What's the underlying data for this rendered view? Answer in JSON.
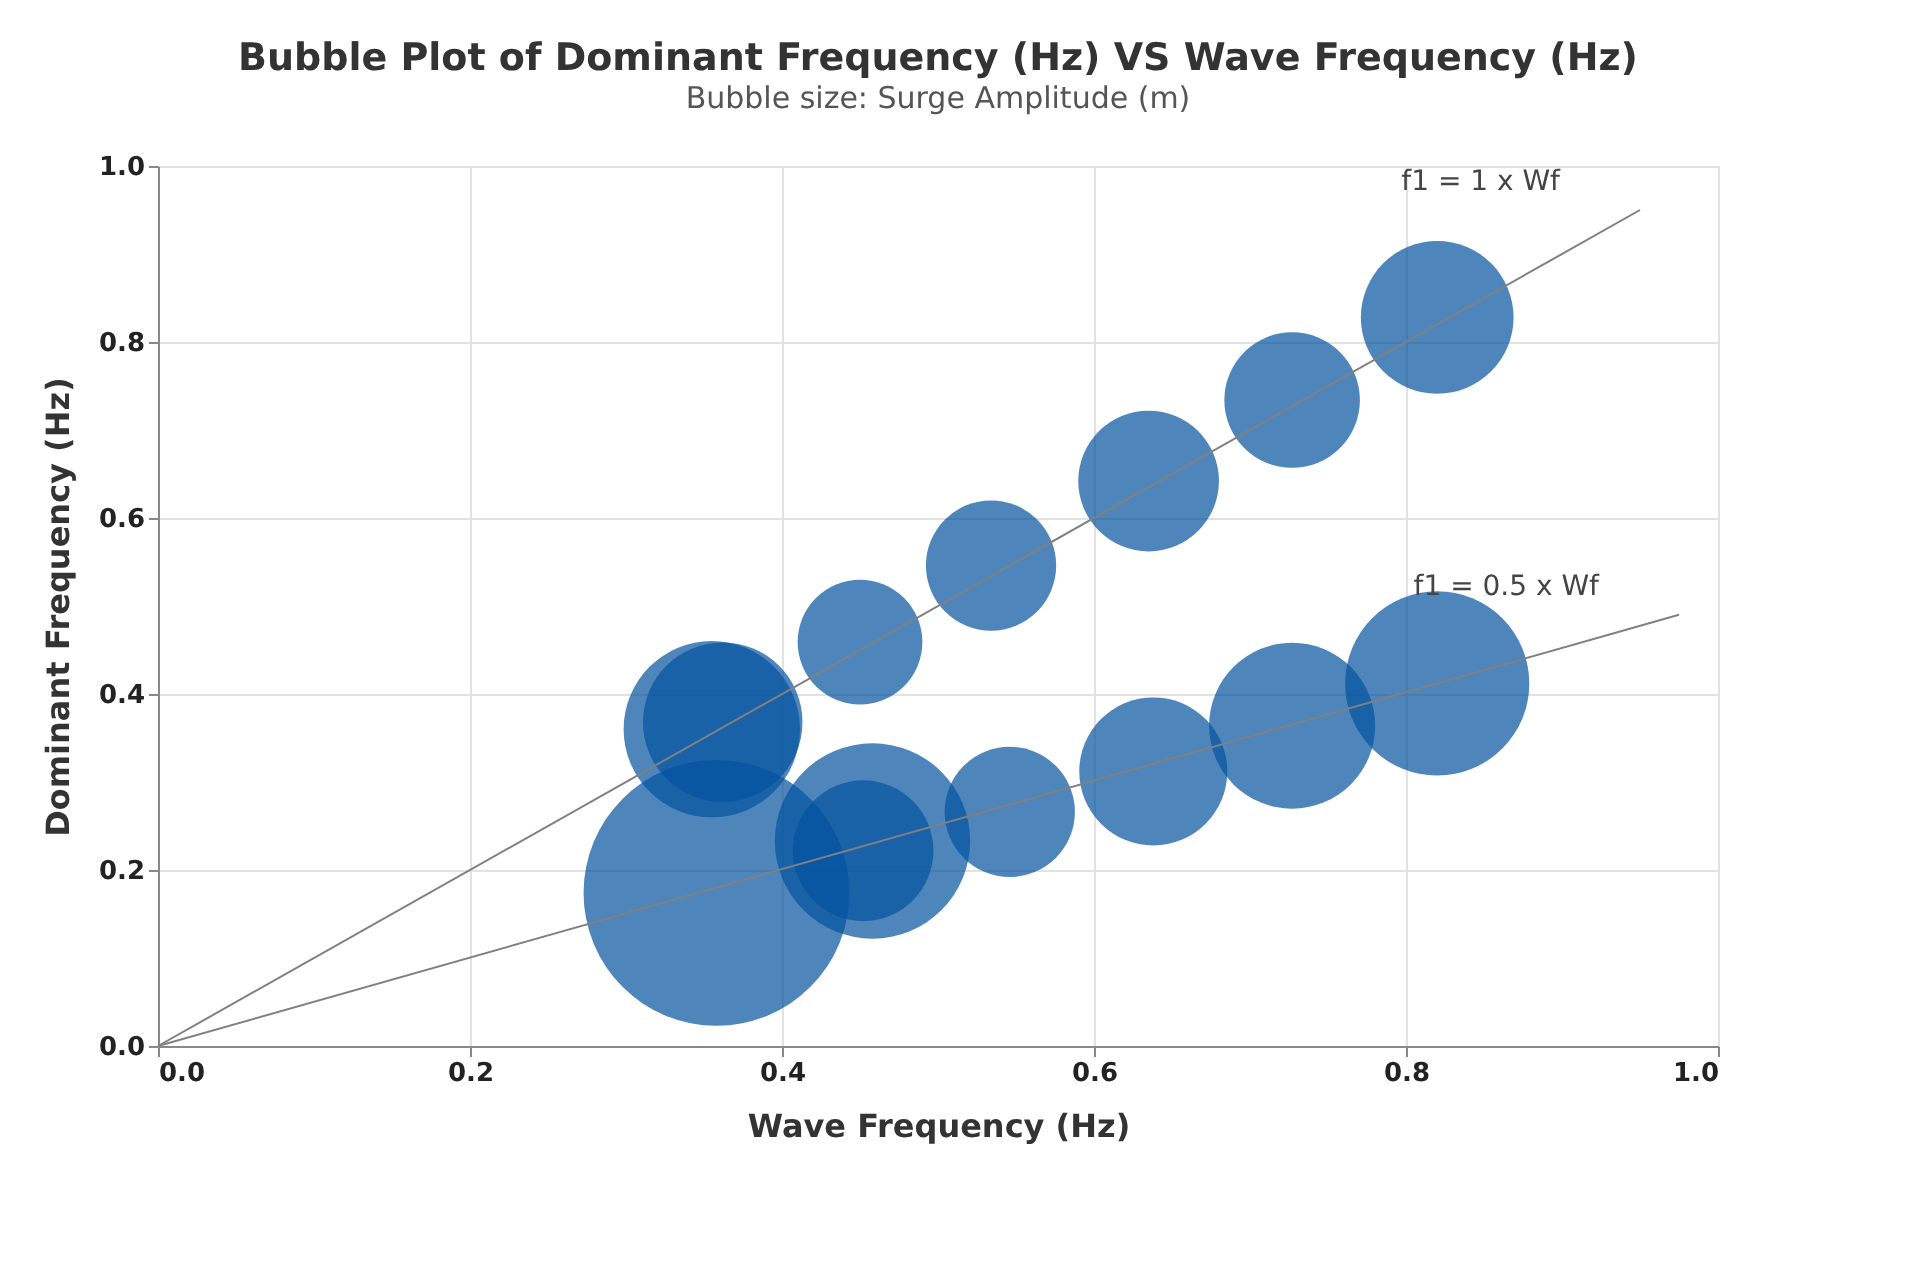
{
  "chart_data": {
    "type": "bubble",
    "title": "Bubble Plot of Dominant Frequency (Hz) VS Wave Frequency (Hz)",
    "subtitle": "Bubble size: Surge Amplitude (m)",
    "xlabel": "Wave Frequency (Hz)",
    "ylabel": "Dominant Frequency (Hz)",
    "xlim": [
      0,
      1
    ],
    "ylim": [
      0,
      1
    ],
    "xticks": [
      {
        "value": 0,
        "label": "0.0"
      },
      0.2,
      0.4,
      0.6,
      0.8,
      {
        "value": 1,
        "label": "1.0"
      }
    ],
    "yticks": [
      {
        "value": 0,
        "label": "0.0"
      },
      0.2,
      0.4,
      0.6,
      0.8,
      {
        "value": 1,
        "label": "1.0"
      }
    ],
    "grid": true,
    "legend": false,
    "series": [
      {
        "color": "#0352a0",
        "x": [
          0.355,
          0.362,
          0.45,
          0.534,
          0.635,
          0.727,
          0.82,
          0.358,
          0.458,
          0.452,
          0.546,
          0.638,
          0.727,
          0.82
        ],
        "values": [
          0.36,
          0.368,
          0.459,
          0.546,
          0.642,
          0.734,
          0.828,
          0.174,
          0.233,
          0.222,
          0.266,
          0.312,
          0.364,
          0.412
        ],
        "sizes": [
          0.44,
          0.36,
          0.22,
          0.24,
          0.28,
          0.26,
          0.33,
          1,
          0.54,
          0.28,
          0.24,
          0.31,
          0.39,
          0.48
        ]
      },
      {
        "type": "line",
        "name": "f1 = 1 x Wf",
        "color": "#808080",
        "x": [
          0,
          0.95
        ],
        "values": [
          0,
          0.95
        ]
      },
      {
        "type": "line",
        "name": "f1 = 0.5 x Wf",
        "color": "#808080",
        "x": [
          0,
          0.975
        ],
        "values": [
          0,
          0.49
        ]
      }
    ]
  }
}
